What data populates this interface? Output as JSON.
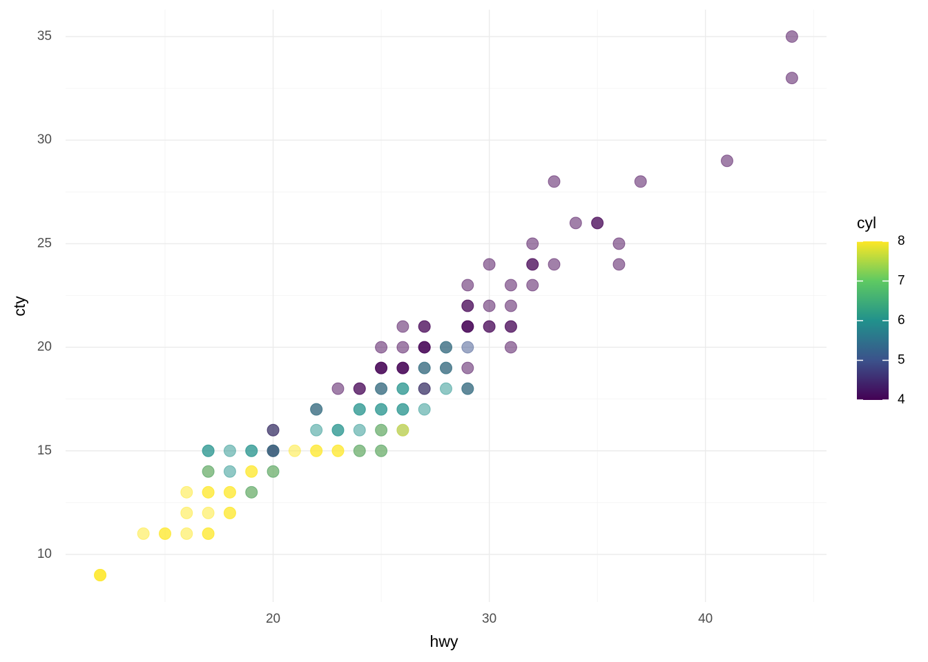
{
  "chart_data": {
    "type": "scatter",
    "x_label": "hwy",
    "y_label": "cty",
    "legend_title": "cyl",
    "xlim": [
      10.4,
      45.6
    ],
    "ylim": [
      7.7,
      36.3
    ],
    "xticks": [
      20,
      30,
      40
    ],
    "yticks": [
      10,
      15,
      20,
      25,
      30,
      35
    ],
    "x_minor_ticks": [
      15,
      25,
      35,
      45
    ],
    "y_minor_ticks": [
      12.5,
      17.5,
      22.5,
      27.5,
      32.5
    ],
    "grid": true,
    "alpha": 0.5,
    "colormap": [
      "#440154",
      "#3b528b",
      "#21918c",
      "#5ec962",
      "#fde725"
    ],
    "color_lim": [
      4,
      8
    ],
    "color_ticks": [
      4,
      5,
      6,
      7,
      8
    ],
    "x": [
      44,
      44,
      41,
      33,
      37,
      34,
      35,
      35,
      32,
      36,
      30,
      32,
      32,
      33,
      36,
      29,
      31,
      32,
      29,
      29,
      30,
      31,
      26,
      27,
      27,
      29,
      29,
      29,
      30,
      30,
      31,
      31,
      25,
      26,
      27,
      27,
      27,
      28,
      28,
      29,
      31,
      25,
      25,
      25,
      26,
      26,
      26,
      27,
      27,
      28,
      28,
      29,
      23,
      24,
      24,
      25,
      25,
      26,
      26,
      27,
      27,
      28,
      29,
      29,
      22,
      22,
      24,
      24,
      25,
      25,
      26,
      26,
      27,
      20,
      20,
      22,
      23,
      23,
      24,
      25,
      25,
      26,
      26,
      17,
      17,
      18,
      19,
      19,
      20,
      20,
      20,
      21,
      22,
      22,
      23,
      23,
      24,
      24,
      25,
      25,
      17,
      17,
      18,
      19,
      19,
      20,
      20,
      16,
      17,
      17,
      18,
      18,
      19,
      19,
      16,
      17,
      18,
      18,
      14,
      15,
      15,
      16,
      17,
      17,
      12,
      12,
      12
    ],
    "y": [
      35,
      33,
      29,
      28,
      28,
      26,
      26,
      26,
      25,
      25,
      24,
      24,
      24,
      24,
      24,
      23,
      23,
      23,
      22,
      22,
      22,
      22,
      21,
      21,
      21,
      21,
      21,
      21,
      21,
      21,
      21,
      21,
      20,
      20,
      20,
      20,
      20,
      20,
      20,
      20,
      20,
      19,
      19,
      19,
      19,
      19,
      19,
      19,
      19,
      19,
      19,
      19,
      18,
      18,
      18,
      18,
      18,
      18,
      18,
      18,
      18,
      18,
      18,
      18,
      17,
      17,
      17,
      17,
      17,
      17,
      17,
      17,
      17,
      16,
      16,
      16,
      16,
      16,
      16,
      16,
      16,
      16,
      16,
      15,
      15,
      15,
      15,
      15,
      15,
      15,
      15,
      15,
      15,
      15,
      15,
      15,
      15,
      15,
      15,
      15,
      14,
      14,
      14,
      14,
      14,
      14,
      14,
      13,
      13,
      13,
      13,
      13,
      13,
      13,
      12,
      12,
      12,
      12,
      11,
      11,
      11,
      11,
      11,
      11,
      9,
      9,
      9
    ],
    "cyl": [
      4,
      4,
      4,
      4,
      4,
      4,
      4,
      4,
      4,
      4,
      4,
      4,
      4,
      4,
      4,
      4,
      4,
      4,
      4,
      4,
      4,
      4,
      4,
      4,
      4,
      4,
      4,
      4,
      4,
      4,
      4,
      4,
      4,
      4,
      4,
      4,
      4,
      4,
      6,
      5,
      4,
      4,
      4,
      4,
      4,
      4,
      4,
      4,
      6,
      4,
      6,
      4,
      4,
      4,
      4,
      4,
      6,
      6,
      6,
      6,
      4,
      6,
      4,
      6,
      4,
      6,
      6,
      6,
      6,
      6,
      6,
      6,
      6,
      6,
      4,
      6,
      6,
      6,
      6,
      8,
      6,
      6,
      8,
      6,
      6,
      6,
      6,
      6,
      4,
      4,
      6,
      8,
      8,
      8,
      8,
      8,
      8,
      6,
      8,
      6,
      8,
      6,
      6,
      8,
      8,
      8,
      6,
      8,
      8,
      8,
      8,
      8,
      8,
      6,
      8,
      8,
      8,
      8,
      8,
      8,
      8,
      8,
      8,
      8,
      8,
      8,
      8
    ]
  }
}
